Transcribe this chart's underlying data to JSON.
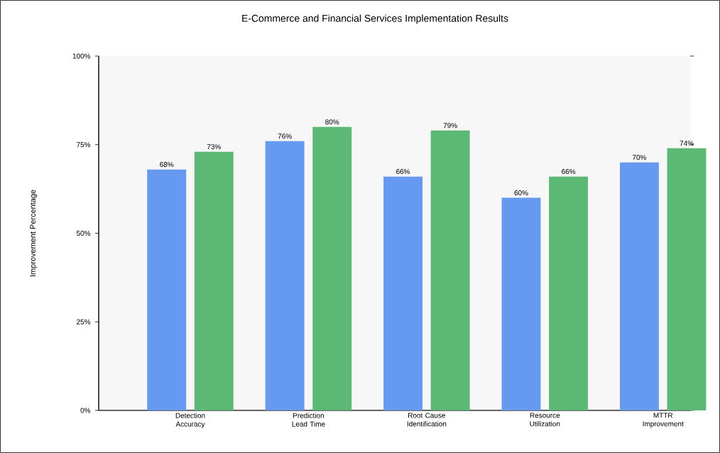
{
  "chart_data": {
    "type": "bar",
    "title": "E-Commerce and Financial Services Implementation Results",
    "ylabel": "Improvement Percentage",
    "categories": [
      "Detection Accuracy",
      "Prediction Lead Time",
      "Root Cause Identification",
      "Resource Utilization",
      "MTTR Improvement"
    ],
    "series": [
      {
        "color": "#6699f0",
        "values": [
          68,
          76,
          66,
          60,
          70
        ],
        "value_labels": [
          "68%",
          "76%",
          "66%",
          "60%",
          "70%"
        ]
      },
      {
        "color": "#5cb875",
        "values": [
          73,
          80,
          79,
          66,
          74
        ],
        "value_labels": [
          "73%",
          "80%",
          "79%",
          "66%",
          "74%"
        ]
      }
    ],
    "ylim": [
      0,
      100
    ],
    "yticks": [
      {
        "value": 0,
        "label": "0%"
      },
      {
        "value": 25,
        "label": "25%"
      },
      {
        "value": 50,
        "label": "50%"
      },
      {
        "value": 75,
        "label": "75%"
      },
      {
        "value": 100,
        "label": "100%"
      }
    ],
    "grid": false
  }
}
